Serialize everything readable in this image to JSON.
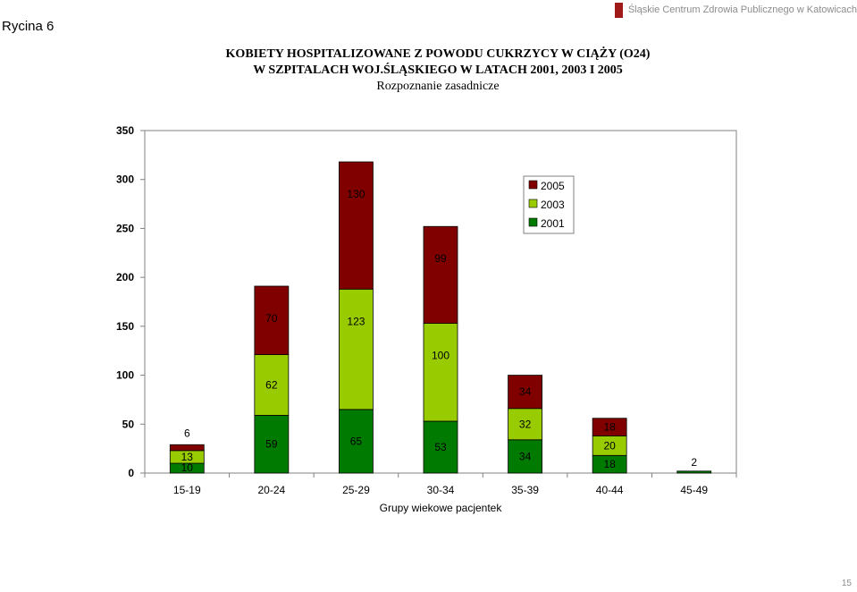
{
  "figure_label": "Rycina 6",
  "header": {
    "org_name": "Śląskie Centrum Zdrowia Publicznego w Katowicach",
    "accent_color": "#a01a1a"
  },
  "title": {
    "line1": "KOBIETY HOSPITALIZOWANE Z POWODU CUKRZYCY W CIĄŻY (O24)",
    "line2": "W SZPITALACH WOJ.ŚLĄSKIEGO W LATACH 2001, 2003 I 2005",
    "line3": "Rozpoznanie zasadnicze"
  },
  "page_number": "15",
  "chart_data": {
    "type": "bar",
    "stacked": true,
    "categories": [
      "15-19",
      "20-24",
      "25-29",
      "30-34",
      "35-39",
      "40-44",
      "45-49"
    ],
    "series": [
      {
        "name": "2001",
        "color": "#007a00",
        "values": [
          10,
          59,
          65,
          53,
          34,
          18,
          2
        ]
      },
      {
        "name": "2003",
        "color": "#99cc00",
        "values": [
          13,
          62,
          123,
          100,
          32,
          20,
          0
        ]
      },
      {
        "name": "2005",
        "color": "#800000",
        "values": [
          6,
          70,
          130,
          99,
          34,
          18,
          0
        ]
      }
    ],
    "xlabel": "Grupy wiekowe pacjentek",
    "ylabel": "",
    "ylim": [
      0,
      350
    ],
    "yticks": [
      0,
      50,
      100,
      150,
      200,
      250,
      300,
      350
    ],
    "grid": false,
    "legend_position": "top-right"
  }
}
